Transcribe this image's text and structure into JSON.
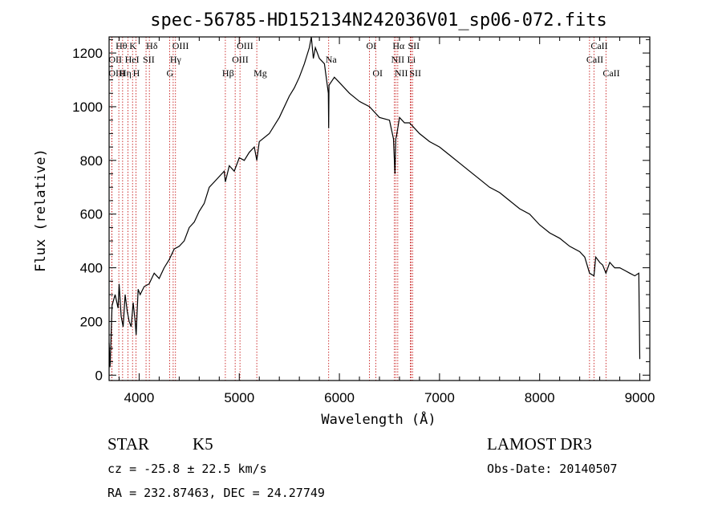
{
  "chart_data": {
    "type": "line",
    "title": "spec-56785-HD152134N242036V01_sp06-072.fits",
    "xlabel": "Wavelength (Å)",
    "ylabel": "Flux (relative)",
    "xlim": [
      3700,
      9100
    ],
    "ylim": [
      -20,
      1260
    ],
    "xticks": [
      4000,
      5000,
      6000,
      7000,
      8000,
      9000
    ],
    "yticks": [
      0,
      200,
      400,
      600,
      800,
      1000,
      1200
    ],
    "series": [
      {
        "name": "flux",
        "x": [
          3700,
          3710,
          3730,
          3760,
          3790,
          3800,
          3820,
          3840,
          3860,
          3880,
          3900,
          3920,
          3940,
          3960,
          3970,
          3990,
          4010,
          4050,
          4100,
          4150,
          4200,
          4250,
          4300,
          4350,
          4400,
          4450,
          4500,
          4550,
          4600,
          4650,
          4700,
          4750,
          4800,
          4850,
          4861,
          4900,
          4950,
          5000,
          5050,
          5100,
          5150,
          5175,
          5200,
          5300,
          5400,
          5500,
          5550,
          5600,
          5650,
          5700,
          5720,
          5740,
          5760,
          5800,
          5850,
          5890,
          5893,
          5896,
          5950,
          6000,
          6100,
          6200,
          6300,
          6400,
          6500,
          6540,
          6555,
          6563,
          6570,
          6600,
          6650,
          6700,
          6750,
          6800,
          6900,
          7000,
          7100,
          7200,
          7300,
          7400,
          7500,
          7600,
          7700,
          7800,
          7900,
          8000,
          8100,
          8200,
          8300,
          8400,
          8450,
          8498,
          8542,
          8560,
          8600,
          8630,
          8662,
          8700,
          8750,
          8800,
          8850,
          8900,
          8950,
          8990,
          9000
        ],
        "y": [
          120,
          30,
          260,
          300,
          250,
          340,
          220,
          180,
          300,
          240,
          200,
          180,
          270,
          200,
          150,
          320,
          300,
          330,
          340,
          380,
          360,
          400,
          430,
          470,
          480,
          500,
          550,
          570,
          610,
          640,
          700,
          720,
          740,
          760,
          720,
          780,
          760,
          810,
          800,
          830,
          850,
          800,
          870,
          900,
          960,
          1040,
          1070,
          1110,
          1160,
          1220,
          1290,
          1180,
          1220,
          1180,
          1160,
          1050,
          920,
          1080,
          1110,
          1090,
          1050,
          1020,
          1000,
          960,
          950,
          880,
          750,
          880,
          890,
          960,
          940,
          940,
          920,
          900,
          870,
          850,
          820,
          790,
          760,
          730,
          700,
          680,
          650,
          620,
          600,
          560,
          530,
          510,
          480,
          460,
          440,
          380,
          370,
          440,
          420,
          410,
          380,
          420,
          400,
          400,
          390,
          380,
          370,
          380,
          60
        ]
      }
    ],
    "line_markers": [
      {
        "label": "Hθ",
        "x": 3797,
        "row": 0
      },
      {
        "label": "OII",
        "x": 3727,
        "row": 1
      },
      {
        "label": "OIII",
        "x": 3727,
        "row": 2
      },
      {
        "label": "K",
        "x": 3934,
        "row": 0
      },
      {
        "label": "HeI",
        "x": 3889,
        "row": 1
      },
      {
        "label": "Hη",
        "x": 3835,
        "row": 2
      },
      {
        "label": "SII",
        "x": 4069,
        "row": 1
      },
      {
        "label": "H",
        "x": 3969,
        "row": 2
      },
      {
        "label": "Hδ",
        "x": 4102,
        "row": 0
      },
      {
        "label": "OIII",
        "x": 4363,
        "row": 0
      },
      {
        "label": "Hγ",
        "x": 4340,
        "row": 1
      },
      {
        "label": "G",
        "x": 4305,
        "row": 2
      },
      {
        "label": "OIII",
        "x": 5007,
        "row": 0
      },
      {
        "label": "OIII",
        "x": 4959,
        "row": 1
      },
      {
        "label": "Hβ",
        "x": 4861,
        "row": 2
      },
      {
        "label": "Mg",
        "x": 5175,
        "row": 2
      },
      {
        "label": "Na",
        "x": 5893,
        "row": 1
      },
      {
        "label": "OI",
        "x": 6300,
        "row": 0
      },
      {
        "label": "OI",
        "x": 6363,
        "row": 2
      },
      {
        "label": "Hα",
        "x": 6563,
        "row": 0
      },
      {
        "label": "SII",
        "x": 6716,
        "row": 0
      },
      {
        "label": "NII",
        "x": 6548,
        "row": 1
      },
      {
        "label": "Li",
        "x": 6708,
        "row": 1
      },
      {
        "label": "NII",
        "x": 6583,
        "row": 2
      },
      {
        "label": "SII",
        "x": 6731,
        "row": 2
      },
      {
        "label": "CaII",
        "x": 8542,
        "row": 0
      },
      {
        "label": "CaII",
        "x": 8498,
        "row": 1
      },
      {
        "label": "CaII",
        "x": 8662,
        "row": 2
      }
    ]
  },
  "info": {
    "class": "STAR",
    "subclass": "K5",
    "survey": "LAMOST DR3",
    "cz": "cz = -25.8 ± 22.5 km/s",
    "obs_date": "Obs-Date: 20140507",
    "coords": "RA = 232.87463, DEC =  24.27749"
  },
  "colors": {
    "axis": "#000000",
    "spectrum": "#000000",
    "line_marker": "#c00000"
  }
}
